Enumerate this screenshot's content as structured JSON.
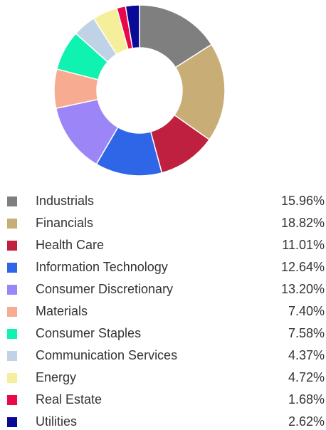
{
  "chart_data": {
    "type": "donut",
    "categories": [
      "Industrials",
      "Financials",
      "Health Care",
      "Information Technology",
      "Consumer Discretionary",
      "Materials",
      "Consumer Staples",
      "Communication Services",
      "Energy",
      "Real Estate",
      "Utilities"
    ],
    "values": [
      15.96,
      18.82,
      11.01,
      12.64,
      13.2,
      7.4,
      7.58,
      4.37,
      4.72,
      1.68,
      2.62
    ],
    "value_labels": [
      "15.96%",
      "18.82%",
      "11.01%",
      "12.64%",
      "13.20%",
      "7.40%",
      "7.58%",
      "4.37%",
      "4.72%",
      "1.68%",
      "2.62%"
    ],
    "colors": [
      "#7f7f7f",
      "#c8ad76",
      "#c0203f",
      "#2f66e8",
      "#9b85f7",
      "#f7ab90",
      "#10f2b0",
      "#c0d3e6",
      "#f5ef9c",
      "#e8094a",
      "#0a0a99"
    ]
  }
}
